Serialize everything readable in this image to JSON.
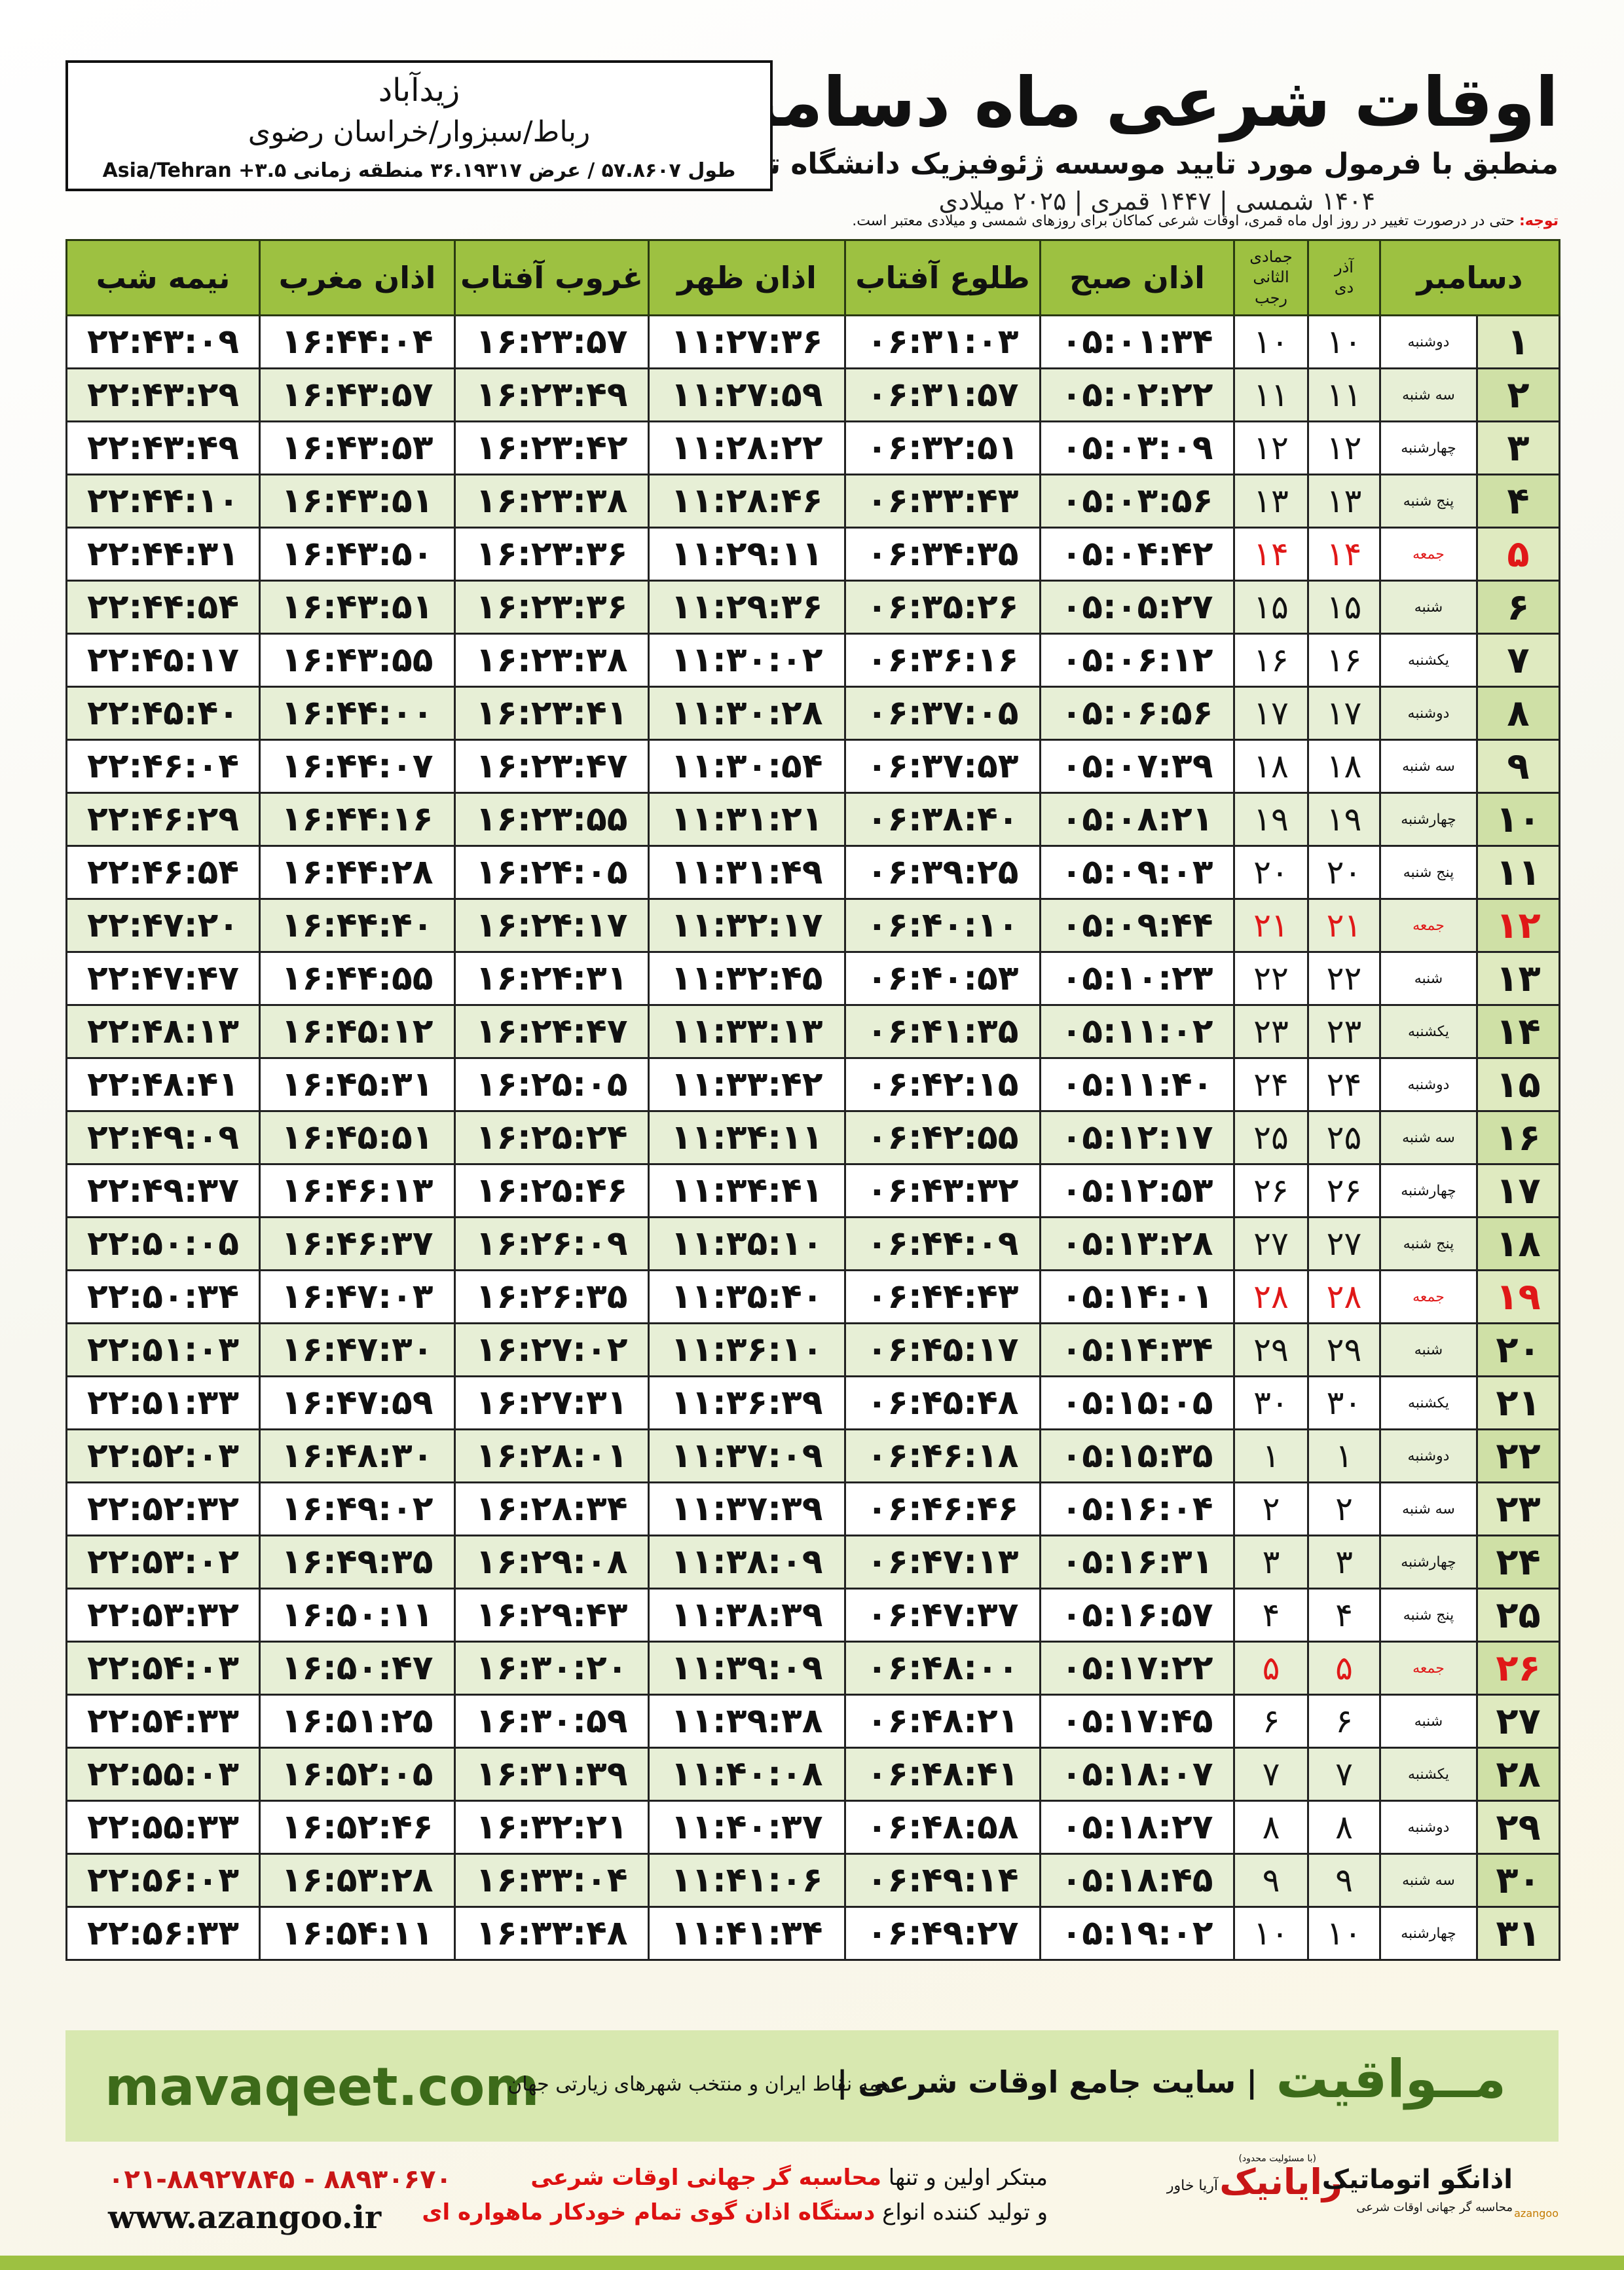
{
  "header": {
    "title": "اوقات شرعی ماه دسامبر",
    "subtitle": "منطبق با فرمول مورد تایید موسسه ژئوفیزیک دانشگاه تهران",
    "dates": "۱۴۰۴ شمسی | ۱۴۴۷ قمری | ۲۰۲۵ میلادی"
  },
  "location": {
    "city": "زیدآباد",
    "region": "رباط/سبزوار/خراسان رضوی",
    "coords": "طول ۵۷.۸۶۰۷ / عرض ۳۶.۱۹۳۱۷ منطقه زمانی ۳.۵+ Asia/Tehran"
  },
  "note": {
    "label": "توجه:",
    "text": "حتی در درصورت تغییر در روز اول ماه قمری، اوقات شرعی کماکان برای روزهای شمسی و میلادی معتبر است."
  },
  "table": {
    "header": {
      "month": "دسامبر",
      "solar_month": "آذر",
      "solar_next": "دی",
      "lunar_month": "جمادی الثانی",
      "lunar_next": "رجب",
      "times": [
        "اذان صبح",
        "طلوع آفتاب",
        "اذان ظهر",
        "غروب آفتاب",
        "اذان مغرب",
        "نیمه شب"
      ]
    },
    "rows": [
      [
        "۱",
        "دوشنبه",
        "۱۰",
        "۱۰",
        "۰۵:۰۱:۳۴",
        "۰۶:۳۱:۰۳",
        "۱۱:۲۷:۳۶",
        "۱۶:۲۳:۵۷",
        "۱۶:۴۴:۰۴",
        "۲۲:۴۳:۰۹"
      ],
      [
        "۲",
        "سه شنبه",
        "۱۱",
        "۱۱",
        "۰۵:۰۲:۲۲",
        "۰۶:۳۱:۵۷",
        "۱۱:۲۷:۵۹",
        "۱۶:۲۳:۴۹",
        "۱۶:۴۳:۵۷",
        "۲۲:۴۳:۲۹"
      ],
      [
        "۳",
        "چهارشنبه",
        "۱۲",
        "۱۲",
        "۰۵:۰۳:۰۹",
        "۰۶:۳۲:۵۱",
        "۱۱:۲۸:۲۲",
        "۱۶:۲۳:۴۲",
        "۱۶:۴۳:۵۳",
        "۲۲:۴۳:۴۹"
      ],
      [
        "۴",
        "پنج شنبه",
        "۱۳",
        "۱۳",
        "۰۵:۰۳:۵۶",
        "۰۶:۳۳:۴۳",
        "۱۱:۲۸:۴۶",
        "۱۶:۲۳:۳۸",
        "۱۶:۴۳:۵۱",
        "۲۲:۴۴:۱۰"
      ],
      [
        "۵",
        "جمعه",
        "۱۴",
        "۱۴",
        "۰۵:۰۴:۴۲",
        "۰۶:۳۴:۳۵",
        "۱۱:۲۹:۱۱",
        "۱۶:۲۳:۳۶",
        "۱۶:۴۳:۵۰",
        "۲۲:۴۴:۳۱"
      ],
      [
        "۶",
        "شنبه",
        "۱۵",
        "۱۵",
        "۰۵:۰۵:۲۷",
        "۰۶:۳۵:۲۶",
        "۱۱:۲۹:۳۶",
        "۱۶:۲۳:۳۶",
        "۱۶:۴۳:۵۱",
        "۲۲:۴۴:۵۴"
      ],
      [
        "۷",
        "یکشنبه",
        "۱۶",
        "۱۶",
        "۰۵:۰۶:۱۲",
        "۰۶:۳۶:۱۶",
        "۱۱:۳۰:۰۲",
        "۱۶:۲۳:۳۸",
        "۱۶:۴۳:۵۵",
        "۲۲:۴۵:۱۷"
      ],
      [
        "۸",
        "دوشنبه",
        "۱۷",
        "۱۷",
        "۰۵:۰۶:۵۶",
        "۰۶:۳۷:۰۵",
        "۱۱:۳۰:۲۸",
        "۱۶:۲۳:۴۱",
        "۱۶:۴۴:۰۰",
        "۲۲:۴۵:۴۰"
      ],
      [
        "۹",
        "سه شنبه",
        "۱۸",
        "۱۸",
        "۰۵:۰۷:۳۹",
        "۰۶:۳۷:۵۳",
        "۱۱:۳۰:۵۴",
        "۱۶:۲۳:۴۷",
        "۱۶:۴۴:۰۷",
        "۲۲:۴۶:۰۴"
      ],
      [
        "۱۰",
        "چهارشنبه",
        "۱۹",
        "۱۹",
        "۰۵:۰۸:۲۱",
        "۰۶:۳۸:۴۰",
        "۱۱:۳۱:۲۱",
        "۱۶:۲۳:۵۵",
        "۱۶:۴۴:۱۶",
        "۲۲:۴۶:۲۹"
      ],
      [
        "۱۱",
        "پنج شنبه",
        "۲۰",
        "۲۰",
        "۰۵:۰۹:۰۳",
        "۰۶:۳۹:۲۵",
        "۱۱:۳۱:۴۹",
        "۱۶:۲۴:۰۵",
        "۱۶:۴۴:۲۸",
        "۲۲:۴۶:۵۴"
      ],
      [
        "۱۲",
        "جمعه",
        "۲۱",
        "۲۱",
        "۰۵:۰۹:۴۴",
        "۰۶:۴۰:۱۰",
        "۱۱:۳۲:۱۷",
        "۱۶:۲۴:۱۷",
        "۱۶:۴۴:۴۰",
        "۲۲:۴۷:۲۰"
      ],
      [
        "۱۳",
        "شنبه",
        "۲۲",
        "۲۲",
        "۰۵:۱۰:۲۳",
        "۰۶:۴۰:۵۳",
        "۱۱:۳۲:۴۵",
        "۱۶:۲۴:۳۱",
        "۱۶:۴۴:۵۵",
        "۲۲:۴۷:۴۷"
      ],
      [
        "۱۴",
        "یکشنبه",
        "۲۳",
        "۲۳",
        "۰۵:۱۱:۰۲",
        "۰۶:۴۱:۳۵",
        "۱۱:۳۳:۱۳",
        "۱۶:۲۴:۴۷",
        "۱۶:۴۵:۱۲",
        "۲۲:۴۸:۱۳"
      ],
      [
        "۱۵",
        "دوشنبه",
        "۲۴",
        "۲۴",
        "۰۵:۱۱:۴۰",
        "۰۶:۴۲:۱۵",
        "۱۱:۳۳:۴۲",
        "۱۶:۲۵:۰۵",
        "۱۶:۴۵:۳۱",
        "۲۲:۴۸:۴۱"
      ],
      [
        "۱۶",
        "سه شنبه",
        "۲۵",
        "۲۵",
        "۰۵:۱۲:۱۷",
        "۰۶:۴۲:۵۵",
        "۱۱:۳۴:۱۱",
        "۱۶:۲۵:۲۴",
        "۱۶:۴۵:۵۱",
        "۲۲:۴۹:۰۹"
      ],
      [
        "۱۷",
        "چهارشنبه",
        "۲۶",
        "۲۶",
        "۰۵:۱۲:۵۳",
        "۰۶:۴۳:۳۲",
        "۱۱:۳۴:۴۱",
        "۱۶:۲۵:۴۶",
        "۱۶:۴۶:۱۳",
        "۲۲:۴۹:۳۷"
      ],
      [
        "۱۸",
        "پنج شنبه",
        "۲۷",
        "۲۷",
        "۰۵:۱۳:۲۸",
        "۰۶:۴۴:۰۹",
        "۱۱:۳۵:۱۰",
        "۱۶:۲۶:۰۹",
        "۱۶:۴۶:۳۷",
        "۲۲:۵۰:۰۵"
      ],
      [
        "۱۹",
        "جمعه",
        "۲۸",
        "۲۸",
        "۰۵:۱۴:۰۱",
        "۰۶:۴۴:۴۳",
        "۱۱:۳۵:۴۰",
        "۱۶:۲۶:۳۵",
        "۱۶:۴۷:۰۳",
        "۲۲:۵۰:۳۴"
      ],
      [
        "۲۰",
        "شنبه",
        "۲۹",
        "۲۹",
        "۰۵:۱۴:۳۴",
        "۰۶:۴۵:۱۷",
        "۱۱:۳۶:۱۰",
        "۱۶:۲۷:۰۲",
        "۱۶:۴۷:۳۰",
        "۲۲:۵۱:۰۳"
      ],
      [
        "۲۱",
        "یکشنبه",
        "۳۰",
        "۳۰",
        "۰۵:۱۵:۰۵",
        "۰۶:۴۵:۴۸",
        "۱۱:۳۶:۳۹",
        "۱۶:۲۷:۳۱",
        "۱۶:۴۷:۵۹",
        "۲۲:۵۱:۳۳"
      ],
      [
        "۲۲",
        "دوشنبه",
        "۱",
        "۱",
        "۰۵:۱۵:۳۵",
        "۰۶:۴۶:۱۸",
        "۱۱:۳۷:۰۹",
        "۱۶:۲۸:۰۱",
        "۱۶:۴۸:۳۰",
        "۲۲:۵۲:۰۳"
      ],
      [
        "۲۳",
        "سه شنبه",
        "۲",
        "۲",
        "۰۵:۱۶:۰۴",
        "۰۶:۴۶:۴۶",
        "۱۱:۳۷:۳۹",
        "۱۶:۲۸:۳۴",
        "۱۶:۴۹:۰۲",
        "۲۲:۵۲:۳۲"
      ],
      [
        "۲۴",
        "چهارشنبه",
        "۳",
        "۳",
        "۰۵:۱۶:۳۱",
        "۰۶:۴۷:۱۳",
        "۱۱:۳۸:۰۹",
        "۱۶:۲۹:۰۸",
        "۱۶:۴۹:۳۵",
        "۲۲:۵۳:۰۲"
      ],
      [
        "۲۵",
        "پنج شنبه",
        "۴",
        "۴",
        "۰۵:۱۶:۵۷",
        "۰۶:۴۷:۳۷",
        "۱۱:۳۸:۳۹",
        "۱۶:۲۹:۴۳",
        "۱۶:۵۰:۱۱",
        "۲۲:۵۳:۳۲"
      ],
      [
        "۲۶",
        "جمعه",
        "۵",
        "۵",
        "۰۵:۱۷:۲۲",
        "۰۶:۴۸:۰۰",
        "۱۱:۳۹:۰۹",
        "۱۶:۳۰:۲۰",
        "۱۶:۵۰:۴۷",
        "۲۲:۵۴:۰۳"
      ],
      [
        "۲۷",
        "شنبه",
        "۶",
        "۶",
        "۰۵:۱۷:۴۵",
        "۰۶:۴۸:۲۱",
        "۱۱:۳۹:۳۸",
        "۱۶:۳۰:۵۹",
        "۱۶:۵۱:۲۵",
        "۲۲:۵۴:۳۳"
      ],
      [
        "۲۸",
        "یکشنبه",
        "۷",
        "۷",
        "۰۵:۱۸:۰۷",
        "۰۶:۴۸:۴۱",
        "۱۱:۴۰:۰۸",
        "۱۶:۳۱:۳۹",
        "۱۶:۵۲:۰۵",
        "۲۲:۵۵:۰۳"
      ],
      [
        "۲۹",
        "دوشنبه",
        "۸",
        "۸",
        "۰۵:۱۸:۲۷",
        "۰۶:۴۸:۵۸",
        "۱۱:۴۰:۳۷",
        "۱۶:۳۲:۲۱",
        "۱۶:۵۲:۴۶",
        "۲۲:۵۵:۳۳"
      ],
      [
        "۳۰",
        "سه شنبه",
        "۹",
        "۹",
        "۰۵:۱۸:۴۵",
        "۰۶:۴۹:۱۴",
        "۱۱:۴۱:۰۶",
        "۱۶:۳۳:۰۴",
        "۱۶:۵۳:۲۸",
        "۲۲:۵۶:۰۳"
      ],
      [
        "۳۱",
        "چهارشنبه",
        "۱۰",
        "۱۰",
        "۰۵:۱۹:۰۲",
        "۰۶:۴۹:۲۷",
        "۱۱:۴۱:۳۴",
        "۱۶:۳۳:۴۸",
        "۱۶:۵۴:۱۱",
        "۲۲:۵۶:۳۳"
      ]
    ]
  },
  "banner": {
    "site": "mavaqeet.com",
    "brand": "مــواقیت",
    "slogan": "| سایت جامع اوقات شرعی |",
    "subslogan": "همه نقاط ایران و منتخب شهرهای زیارتی جهان"
  },
  "footer": {
    "phone": "۰۲۱-۸۸۹۲۷۸۴۵ - ۸۸۹۳۰۶۷۰",
    "website": "www.azangoo.ir",
    "line1": [
      "مبتکر اولین و تنها",
      "محاسبه گر جهانی اوقات شرعی"
    ],
    "line2": [
      "و تولید کننده انواع",
      "دستگاه اذان گوی تمام خودکار ماهواره ای"
    ],
    "logos": [
      {
        "note": "(با مسئولیت محدود)",
        "name": "رایانیک",
        "sub": "آریا خاور"
      },
      {
        "name": "اذانگو اتوماتیک",
        "sub": "محاسبه گر جهانی اوقات شرعی",
        "note": "azangoo"
      }
    ]
  }
}
